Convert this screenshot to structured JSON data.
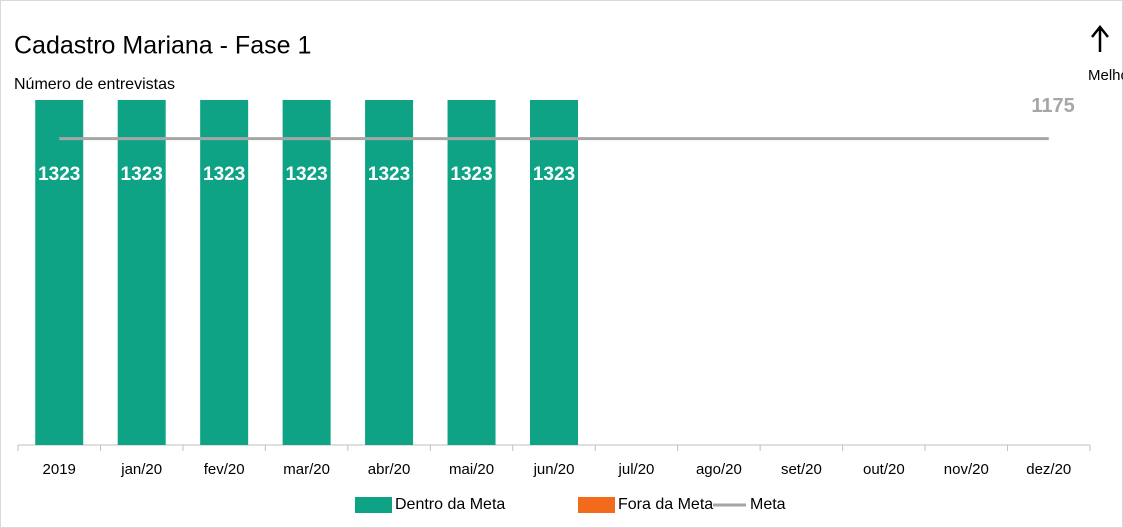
{
  "chart_data": {
    "type": "bar",
    "title": "Cadastro Mariana - Fase 1",
    "subtitle": "Número de entrevistas",
    "annotation": "Melho",
    "categories": [
      "2019",
      "jan/20",
      "fev/20",
      "mar/20",
      "abr/20",
      "mai/20",
      "jun/20",
      "jul/20",
      "ago/20",
      "set/20",
      "out/20",
      "nov/20",
      "dez/20"
    ],
    "series": [
      {
        "name": "Dentro da Meta",
        "color": "#0fa386",
        "values": [
          1323,
          1323,
          1323,
          1323,
          1323,
          1323,
          1323,
          null,
          null,
          null,
          null,
          null,
          null
        ]
      },
      {
        "name": "Fora da Meta",
        "color": "#f26a1b",
        "values": [
          null,
          null,
          null,
          null,
          null,
          null,
          null,
          null,
          null,
          null,
          null,
          null,
          null
        ]
      },
      {
        "name": "Meta",
        "type": "line",
        "color": "#a6a6a6",
        "values": [
          1175,
          1175,
          1175,
          1175,
          1175,
          1175,
          1175,
          1175,
          1175,
          1175,
          1175,
          1175,
          1175
        ]
      }
    ],
    "ylim": [
      0,
      1323
    ]
  }
}
